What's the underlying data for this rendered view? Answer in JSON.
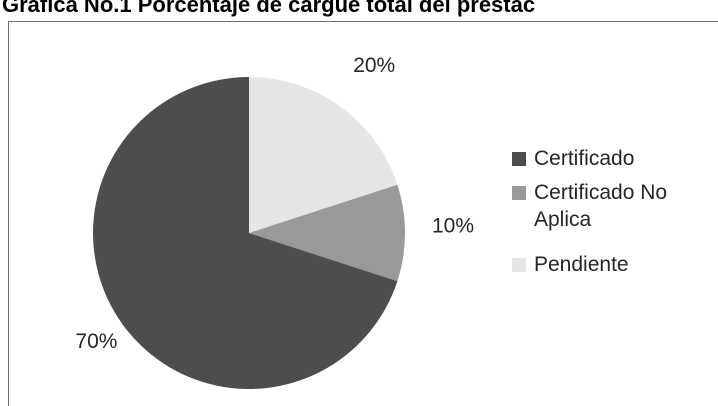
{
  "chart_data": {
    "type": "pie",
    "title": "Gráfica No.1 Porcentaje de cargue total del prestac",
    "categories": [
      "Certificado",
      "Certificado No Aplica",
      "Pendiente"
    ],
    "values": [
      70,
      10,
      20
    ],
    "data_labels": [
      "70%",
      "10%",
      "20%"
    ],
    "colors": [
      "#4d4d4d",
      "#999999",
      "#e6e6e6"
    ],
    "start_angle_deg": 0,
    "direction": "clockwise",
    "legend_position": "right",
    "slice_order_from_top": [
      "Pendiente",
      "Certificado No Aplica",
      "Certificado"
    ]
  }
}
